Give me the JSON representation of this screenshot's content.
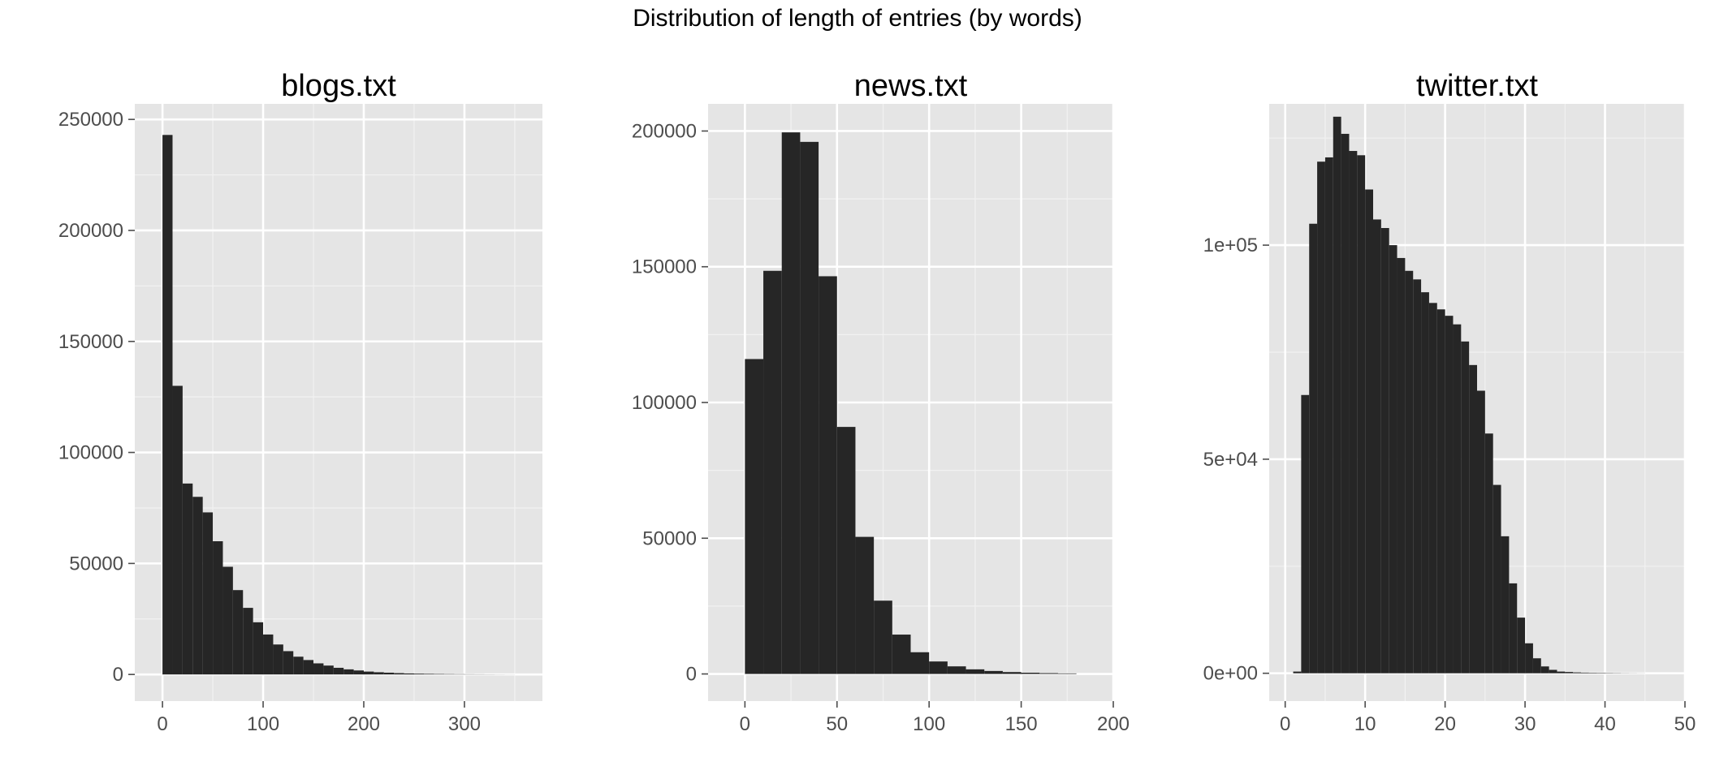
{
  "title": "Distribution of length of entries (by words)",
  "colors": {
    "bar": "#262626",
    "panel_background": "#e5e5e5",
    "grid": "#ffffff",
    "tick_label": "#4d4d4d"
  },
  "chart_data": [
    {
      "type": "bar",
      "title": "blogs.txt",
      "xlabel": "",
      "ylabel": "",
      "grid": true,
      "xlim": [
        -27.5,
        377.5
      ],
      "ylim": [
        -12000,
        257000
      ],
      "x_ticks": [
        0,
        100,
        200,
        300
      ],
      "x_tick_labels": [
        "0",
        "100",
        "200",
        "300"
      ],
      "y_ticks": [
        0,
        50000,
        100000,
        150000,
        200000,
        250000
      ],
      "y_tick_labels": [
        "0",
        "50000",
        "100000",
        "150000",
        "200000",
        "250000"
      ],
      "bin_start": 0,
      "bin_width": 10,
      "values": [
        243000,
        130000,
        86000,
        80000,
        73000,
        60000,
        48500,
        38000,
        30000,
        23500,
        18000,
        13500,
        10500,
        8000,
        6500,
        5000,
        4000,
        3000,
        2300,
        1800,
        1300,
        1000,
        800,
        600,
        450,
        350,
        280,
        220,
        170,
        130,
        100,
        80,
        60,
        40,
        25
      ]
    },
    {
      "type": "bar",
      "title": "news.txt",
      "xlabel": "",
      "ylabel": "",
      "grid": true,
      "xlim": [
        -20,
        200
      ],
      "ylim": [
        -10000,
        210000
      ],
      "x_ticks": [
        0,
        50,
        100,
        150,
        200
      ],
      "x_tick_labels": [
        "0",
        "50",
        "100",
        "150",
        "200"
      ],
      "y_ticks": [
        0,
        50000,
        100000,
        150000,
        200000
      ],
      "y_tick_labels": [
        "0",
        "50000",
        "100000",
        "150000",
        "200000"
      ],
      "bin_start": 0,
      "bin_width": 10,
      "values": [
        116000,
        148500,
        199500,
        196000,
        146500,
        91000,
        50500,
        27000,
        14500,
        8000,
        4600,
        2800,
        1700,
        1100,
        700,
        450,
        300,
        200
      ]
    },
    {
      "type": "bar",
      "title": "twitter.txt",
      "xlabel": "",
      "ylabel": "",
      "grid": true,
      "xlim": [
        -2,
        50
      ],
      "ylim": [
        -6500,
        133000
      ],
      "x_ticks": [
        0,
        10,
        20,
        30,
        40,
        50
      ],
      "x_tick_labels": [
        "0",
        "10",
        "20",
        "30",
        "40",
        "50"
      ],
      "y_ticks": [
        0,
        50000,
        100000
      ],
      "y_tick_labels": [
        "0e+00",
        "5e+04",
        "1e+05"
      ],
      "bin_start": 1,
      "bin_width": 1,
      "values": [
        400,
        65000,
        105000,
        119500,
        120500,
        130000,
        126000,
        122000,
        121000,
        113000,
        106000,
        104000,
        100000,
        97000,
        94000,
        92000,
        89000,
        86500,
        85000,
        83500,
        81500,
        77500,
        72000,
        66000,
        56000,
        44000,
        32000,
        21000,
        13000,
        7000,
        3500,
        1600,
        800,
        400,
        300,
        200,
        150,
        120,
        100,
        80,
        60,
        40,
        30,
        20
      ]
    }
  ]
}
